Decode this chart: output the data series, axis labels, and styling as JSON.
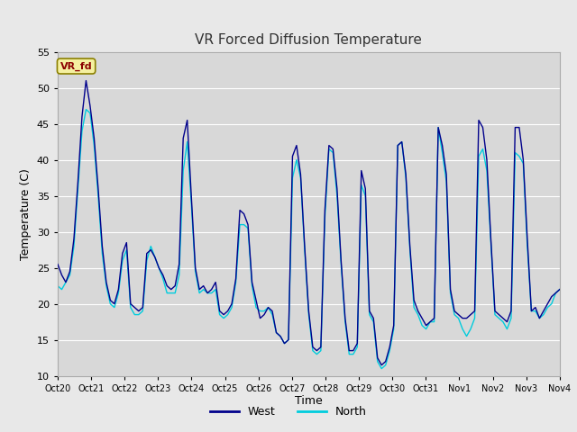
{
  "title": "VR Forced Diffusion Temperature",
  "xlabel": "Time",
  "ylabel": "Temperature (C)",
  "ylim": [
    10,
    55
  ],
  "yticks": [
    10,
    15,
    20,
    25,
    30,
    35,
    40,
    45,
    50,
    55
  ],
  "xtick_labels": [
    "Oct 20",
    "Oct 21",
    "Oct 22",
    "Oct 23",
    "Oct 24",
    "Oct 25",
    "Oct 26",
    "Oct 27",
    "Oct 28",
    "Oct 29",
    "Oct 30",
    "Oct 31",
    "Nov 1",
    "Nov 2",
    "Nov 3",
    "Nov 4"
  ],
  "west_color": "#00008B",
  "north_color": "#00CCDD",
  "bg_color": "#E8E8E8",
  "plot_bg_color": "#D8D8D8",
  "annotation_label": "VR_fd",
  "annotation_bg": "#F5F0A0",
  "annotation_border": "#8B8000",
  "annotation_text_color": "#8B0000",
  "legend_west": "West",
  "legend_north": "North",
  "west_data": [
    25.5,
    24.0,
    23.0,
    24.5,
    29.0,
    37.0,
    46.0,
    51.0,
    47.5,
    43.0,
    36.0,
    28.0,
    23.0,
    20.5,
    20.0,
    22.0,
    27.0,
    28.5,
    20.0,
    19.5,
    19.0,
    19.5,
    27.0,
    27.5,
    26.5,
    25.0,
    24.0,
    22.5,
    22.0,
    22.5,
    25.5,
    43.0,
    45.5,
    35.0,
    25.0,
    22.0,
    22.5,
    21.5,
    22.0,
    23.0,
    19.0,
    18.5,
    19.0,
    20.0,
    23.5,
    33.0,
    32.5,
    31.0,
    23.0,
    20.5,
    18.0,
    18.5,
    19.5,
    19.0,
    16.0,
    15.5,
    14.5,
    15.0,
    40.5,
    42.0,
    38.0,
    28.0,
    19.0,
    14.0,
    13.5,
    14.0,
    33.0,
    42.0,
    41.5,
    36.0,
    26.0,
    18.0,
    13.5,
    13.5,
    14.5,
    38.5,
    36.0,
    19.0,
    18.0,
    12.5,
    11.5,
    12.0,
    14.0,
    17.0,
    42.0,
    42.5,
    38.0,
    28.0,
    20.5,
    19.0,
    18.0,
    17.0,
    17.5,
    18.0,
    44.5,
    42.0,
    38.0,
    22.0,
    19.0,
    18.5,
    18.0,
    18.0,
    18.5,
    19.0,
    45.5,
    44.5,
    40.0,
    29.0,
    19.0,
    18.5,
    18.0,
    17.5,
    19.0,
    44.5,
    44.5,
    40.0,
    29.0,
    19.0,
    19.5,
    18.0,
    19.0,
    20.0,
    21.0,
    21.5,
    22.0
  ],
  "north_data": [
    22.5,
    22.0,
    23.0,
    24.0,
    28.0,
    36.0,
    44.0,
    47.0,
    46.5,
    42.0,
    35.0,
    27.0,
    22.5,
    20.0,
    19.5,
    21.5,
    26.0,
    27.5,
    19.5,
    18.5,
    18.5,
    19.0,
    26.0,
    28.0,
    26.5,
    25.0,
    23.5,
    21.5,
    21.5,
    21.5,
    24.0,
    38.5,
    42.5,
    34.0,
    24.5,
    21.5,
    22.0,
    21.5,
    21.5,
    22.0,
    18.5,
    18.0,
    18.5,
    19.5,
    23.0,
    31.0,
    31.0,
    30.5,
    22.5,
    19.5,
    19.0,
    19.0,
    19.5,
    18.5,
    16.0,
    15.5,
    14.5,
    15.0,
    37.5,
    40.0,
    37.5,
    27.5,
    18.5,
    13.5,
    13.0,
    13.5,
    32.0,
    41.5,
    41.0,
    35.0,
    25.5,
    17.5,
    13.0,
    13.0,
    14.0,
    36.5,
    35.0,
    18.5,
    17.5,
    12.0,
    11.0,
    11.5,
    13.5,
    16.5,
    42.0,
    42.5,
    37.5,
    27.5,
    19.5,
    18.5,
    17.0,
    16.5,
    17.5,
    17.5,
    44.5,
    41.0,
    37.0,
    21.5,
    18.5,
    18.0,
    16.5,
    15.5,
    16.5,
    18.0,
    40.5,
    41.5,
    38.5,
    28.5,
    18.5,
    18.0,
    17.5,
    16.5,
    18.0,
    41.0,
    40.5,
    39.5,
    28.0,
    19.0,
    19.0,
    18.0,
    18.5,
    19.5,
    20.0,
    21.5,
    22.0
  ]
}
